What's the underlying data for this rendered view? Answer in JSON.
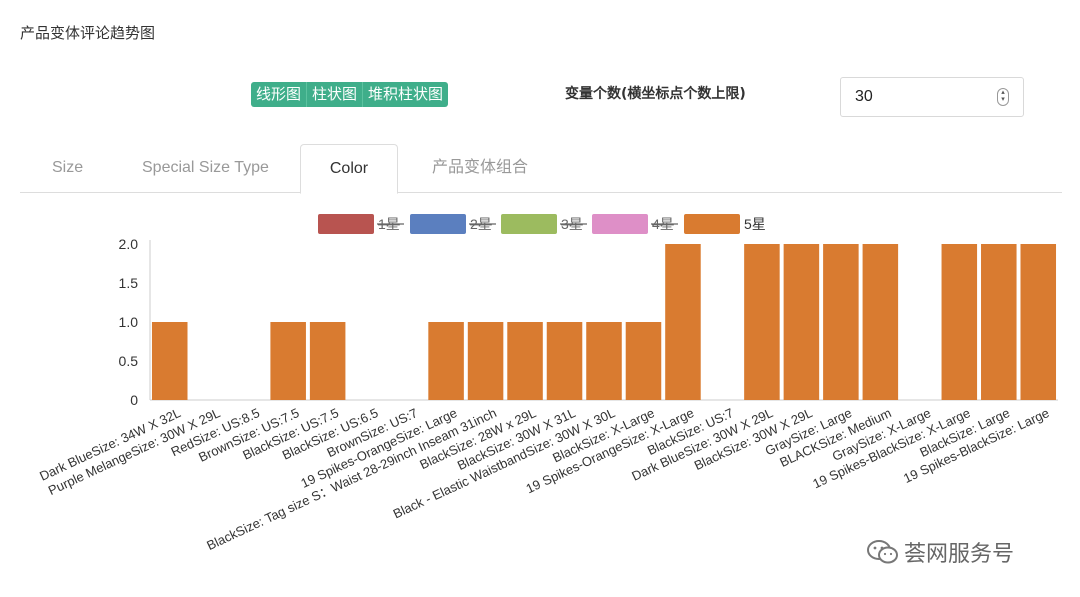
{
  "header": {
    "title": "产品变体评论趋势图"
  },
  "chart_type_buttons": [
    "线形图",
    "柱状图",
    "堆积柱状图"
  ],
  "variable_count": {
    "label": "变量个数(横坐标点个数上限)",
    "value": "30"
  },
  "tabs": [
    {
      "label": "Size",
      "active": false
    },
    {
      "label": "Special Size Type",
      "active": false
    },
    {
      "label": "Color",
      "active": true
    },
    {
      "label": "产品变体组合",
      "active": false
    }
  ],
  "watermark": "荟网服务号",
  "colors": {
    "accent": "#3fae8a",
    "star1": "#b85450",
    "star2": "#5b7fbf",
    "star3": "#9cbb5f",
    "star4": "#de8fc7",
    "star5": "#d97b30"
  },
  "chart_data": {
    "type": "bar",
    "title": "",
    "legend": [
      {
        "name": "1星",
        "color": "#b85450",
        "hidden": true
      },
      {
        "name": "2星",
        "color": "#5b7fbf",
        "hidden": true
      },
      {
        "name": "3星",
        "color": "#9cbb5f",
        "hidden": true
      },
      {
        "name": "4星",
        "color": "#de8fc7",
        "hidden": true
      },
      {
        "name": "5星",
        "color": "#d97b30",
        "hidden": false
      }
    ],
    "ylim": [
      0,
      2
    ],
    "yticks": [
      "0",
      "0.5",
      "1.0",
      "1.5",
      "2.0"
    ],
    "categories": [
      "Dark BlueSize: 34W X 32L",
      "Purple MelangeSize: 30W X 29L",
      "RedSize: US:8.5",
      "BrownSize: US:7.5",
      "BlackSize: US:7.5",
      "BlackSize: US:6.5",
      "BrownSize: US:7",
      "19 Spikes-OrangeSize: Large",
      "BlackSize: Tag size S：Waist 28-29inch Inseam 31inch",
      "BlackSize: 28W x 29L",
      "BlackSize: 30W X 31L",
      "Black - Elastic WaistbandSize: 30W X 30L",
      "BlackSize: X-Large",
      "19 Spikes-OrangeSize: X-Large",
      "BlackSize: US:7",
      "Dark BlueSize: 30W X 29L",
      "BlackSize: 30W X 29L",
      "GraySize: Large",
      "BLACKSize: Medium",
      "GraySize: X-Large",
      "19 Spikes-BlackSize: X-Large",
      "BlackSize: Large",
      "19 Spikes-BlackSize: Large"
    ],
    "series": [
      {
        "name": "5星",
        "values": [
          1,
          0,
          0,
          1,
          1,
          0,
          0,
          1,
          1,
          1,
          1,
          1,
          1,
          2,
          0,
          2,
          2,
          2,
          2,
          0,
          2,
          2,
          2
        ]
      }
    ]
  }
}
